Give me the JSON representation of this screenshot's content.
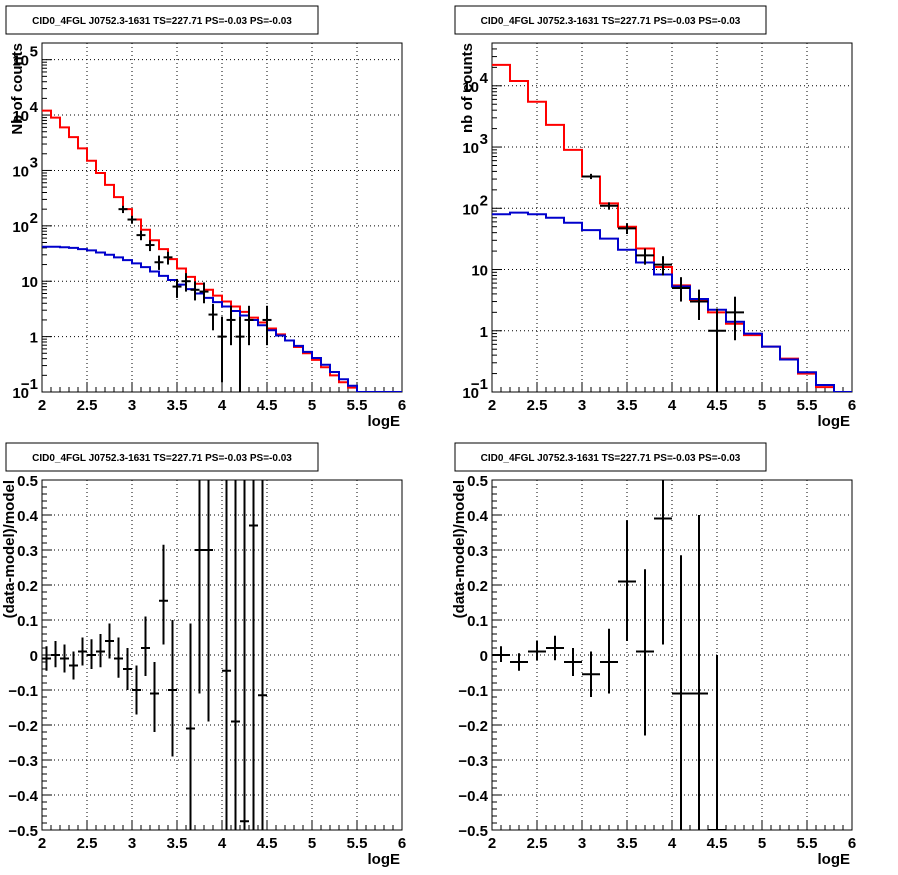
{
  "chart_data": [
    {
      "type": "line",
      "title": "CID0_4FGL J0752.3-1631 TS=227.71 PS=-0.03 PS=-0.03",
      "xlabel": "logE",
      "ylabel": "Nb of counts",
      "xlim": [
        2,
        6
      ],
      "ylim": [
        0.1,
        200000
      ],
      "log_y": true,
      "grid": true,
      "x_ticks": [
        "2",
        "2.5",
        "3",
        "3.5",
        "4",
        "4.5",
        "5",
        "5.5",
        "6"
      ],
      "y_ticks": [
        {
          "v": 0.1,
          "base": "10",
          "exp": "−1"
        },
        {
          "v": 1,
          "base": "1",
          "exp": ""
        },
        {
          "v": 10,
          "base": "10",
          "exp": ""
        },
        {
          "v": 100,
          "base": "10",
          "exp": "2"
        },
        {
          "v": 1000,
          "base": "10",
          "exp": "3"
        },
        {
          "v": 10000,
          "base": "10",
          "exp": "4"
        },
        {
          "v": 100000,
          "base": "10",
          "exp": "5"
        }
      ],
      "bin_width": 0.1,
      "series": [
        {
          "kind": "step",
          "color": "#ff0000",
          "edges": [
            2.0,
            2.1,
            2.2,
            2.3,
            2.4,
            2.5,
            2.6,
            2.7,
            2.8,
            2.9,
            3.0,
            3.1,
            3.2,
            3.3,
            3.4,
            3.5,
            3.6,
            3.7,
            3.8,
            3.9,
            4.0,
            4.1,
            4.2,
            4.3,
            4.4,
            4.5,
            4.6,
            4.7,
            4.8,
            4.9,
            5.0,
            5.1,
            5.2,
            5.3,
            5.4,
            5.5,
            5.6,
            5.7,
            5.8,
            5.9,
            6.0
          ],
          "values": [
            12000,
            9000,
            6000,
            4000,
            2500,
            1500,
            900,
            550,
            330,
            200,
            130,
            85,
            55,
            38,
            25,
            17,
            12,
            9,
            7,
            5.5,
            4.3,
            3.5,
            2.8,
            2.2,
            1.8,
            1.4,
            1.1,
            0.85,
            0.65,
            0.5,
            0.38,
            0.28,
            0.2,
            0.15,
            0.12,
            0.1,
            0.1,
            0.1,
            0.1,
            0.1
          ]
        },
        {
          "kind": "step",
          "color": "#0000cc",
          "edges": [
            2.0,
            2.1,
            2.2,
            2.3,
            2.4,
            2.5,
            2.6,
            2.7,
            2.8,
            2.9,
            3.0,
            3.1,
            3.2,
            3.3,
            3.4,
            3.5,
            3.6,
            3.7,
            3.8,
            3.9,
            4.0,
            4.1,
            4.2,
            4.3,
            4.4,
            4.5,
            4.6,
            4.7,
            4.8,
            4.9,
            5.0,
            5.1,
            5.2,
            5.3,
            5.4,
            5.5,
            5.6,
            5.7,
            5.8,
            5.9,
            6.0
          ],
          "values": [
            42,
            42,
            41,
            40,
            38,
            36,
            33,
            30,
            27,
            24,
            21,
            18,
            15,
            12.5,
            10.5,
            8.7,
            7.2,
            6.0,
            5.0,
            4.2,
            3.5,
            2.9,
            2.4,
            2.0,
            1.6,
            1.3,
            1.05,
            0.85,
            0.68,
            0.53,
            0.41,
            0.31,
            0.23,
            0.17,
            0.13,
            0.1,
            0.1,
            0.1,
            0.1,
            0.1
          ]
        },
        {
          "kind": "points",
          "color": "#000000",
          "points": [
            {
              "x": 2.9,
              "y": 200,
              "ylo": 170,
              "yhi": 230
            },
            {
              "x": 3.0,
              "y": 130,
              "ylo": 110,
              "yhi": 152
            },
            {
              "x": 3.1,
              "y": 68,
              "ylo": 55,
              "yhi": 82
            },
            {
              "x": 3.2,
              "y": 45,
              "ylo": 35,
              "yhi": 55
            },
            {
              "x": 3.3,
              "y": 22,
              "ylo": 16,
              "yhi": 29
            },
            {
              "x": 3.4,
              "y": 27,
              "ylo": 20,
              "yhi": 34
            },
            {
              "x": 3.5,
              "y": 8,
              "ylo": 5,
              "yhi": 11
            },
            {
              "x": 3.6,
              "y": 10,
              "ylo": 6.5,
              "yhi": 14
            },
            {
              "x": 3.7,
              "y": 7,
              "ylo": 4.5,
              "yhi": 10
            },
            {
              "x": 3.8,
              "y": 6.5,
              "ylo": 4,
              "yhi": 9.5
            },
            {
              "x": 3.9,
              "y": 2.5,
              "ylo": 1.3,
              "yhi": 3.9
            },
            {
              "x": 4.0,
              "y": 1,
              "ylo": 0.15,
              "yhi": 2.3
            },
            {
              "x": 4.1,
              "y": 2,
              "ylo": 0.7,
              "yhi": 3.6
            },
            {
              "x": 4.2,
              "y": 1,
              "ylo": 0.1,
              "yhi": 2.3
            },
            {
              "x": 4.3,
              "y": 2,
              "ylo": 0.7,
              "yhi": 3.6
            },
            {
              "x": 4.5,
              "y": 2,
              "ylo": 0.7,
              "yhi": 3.6
            }
          ]
        }
      ]
    },
    {
      "type": "line",
      "title": "CID0_4FGL J0752.3-1631 TS=227.71 PS=-0.03 PS=-0.03",
      "xlabel": "logE",
      "ylabel": "nb of counts",
      "xlim": [
        2,
        6
      ],
      "ylim": [
        0.1,
        50000
      ],
      "log_y": true,
      "grid": true,
      "x_ticks": [
        "2",
        "2.5",
        "3",
        "3.5",
        "4",
        "4.5",
        "5",
        "5.5",
        "6"
      ],
      "y_ticks": [
        {
          "v": 0.1,
          "base": "10",
          "exp": "−1"
        },
        {
          "v": 1,
          "base": "1",
          "exp": ""
        },
        {
          "v": 10,
          "base": "10",
          "exp": ""
        },
        {
          "v": 100,
          "base": "10",
          "exp": "2"
        },
        {
          "v": 1000,
          "base": "10",
          "exp": "3"
        },
        {
          "v": 10000,
          "base": "10",
          "exp": "4"
        }
      ],
      "bin_width": 0.2,
      "series": [
        {
          "kind": "step",
          "color": "#ff0000",
          "edges": [
            2.0,
            2.2,
            2.4,
            2.6,
            2.8,
            3.0,
            3.2,
            3.4,
            3.6,
            3.8,
            4.0,
            4.2,
            4.4,
            4.6,
            4.8,
            5.0,
            5.2,
            5.4,
            5.6,
            5.8,
            6.0
          ],
          "values": [
            22000,
            12000,
            5500,
            2300,
            900,
            330,
            120,
            50,
            22,
            11,
            5.5,
            3.2,
            2.0,
            1.3,
            0.85,
            0.55,
            0.35,
            0.2,
            0.12,
            0.1
          ]
        },
        {
          "kind": "step",
          "color": "#0000cc",
          "edges": [
            2.0,
            2.2,
            2.4,
            2.6,
            2.8,
            3.0,
            3.2,
            3.4,
            3.6,
            3.8,
            4.0,
            4.2,
            4.4,
            4.6,
            4.8,
            5.0,
            5.2,
            5.4,
            5.6,
            5.8,
            6.0
          ],
          "values": [
            80,
            85,
            80,
            70,
            58,
            44,
            32,
            21,
            13,
            8.3,
            5.3,
            3.3,
            2.2,
            1.4,
            0.9,
            0.55,
            0.34,
            0.21,
            0.13,
            0.1
          ]
        },
        {
          "kind": "points",
          "color": "#000000",
          "points": [
            {
              "x": 3.1,
              "y": 330,
              "ylo": 300,
              "yhi": 365
            },
            {
              "x": 3.3,
              "y": 110,
              "ylo": 95,
              "yhi": 125
            },
            {
              "x": 3.5,
              "y": 47,
              "ylo": 38,
              "yhi": 57
            },
            {
              "x": 3.7,
              "y": 17,
              "ylo": 12,
              "yhi": 22
            },
            {
              "x": 3.9,
              "y": 12,
              "ylo": 8,
              "yhi": 16.5
            },
            {
              "x": 4.1,
              "y": 5,
              "ylo": 3,
              "yhi": 7.5
            },
            {
              "x": 4.3,
              "y": 3,
              "ylo": 1.5,
              "yhi": 4.7
            },
            {
              "x": 4.5,
              "y": 1,
              "ylo": 0.1,
              "yhi": 2.3
            },
            {
              "x": 4.7,
              "y": 2,
              "ylo": 0.7,
              "yhi": 3.6
            }
          ]
        }
      ]
    },
    {
      "type": "scatter",
      "title": "CID0_4FGL J0752.3-1631 TS=227.71 PS=-0.03 PS=-0.03",
      "xlabel": "logE",
      "ylabel": "(data-model)/model",
      "xlim": [
        2,
        6
      ],
      "ylim": [
        -0.5,
        0.5
      ],
      "grid": true,
      "x_ticks": [
        "2",
        "2.5",
        "3",
        "3.5",
        "4",
        "4.5",
        "5",
        "5.5",
        "6"
      ],
      "y_ticks": [
        "−0.5",
        "−0.4",
        "−0.3",
        "−0.2",
        "−0.1",
        "0",
        "0.1",
        "0.2",
        "0.3",
        "0.4",
        "0.5"
      ],
      "bin_width": 0.1,
      "series": [
        {
          "kind": "points",
          "color": "#000000",
          "points": [
            {
              "x": 2.05,
              "y": -0.01,
              "ylo": -0.045,
              "yhi": 0.025
            },
            {
              "x": 2.15,
              "y": 0.0,
              "ylo": -0.035,
              "yhi": 0.04
            },
            {
              "x": 2.25,
              "y": -0.01,
              "ylo": -0.05,
              "yhi": 0.03
            },
            {
              "x": 2.35,
              "y": -0.03,
              "ylo": -0.07,
              "yhi": 0.01
            },
            {
              "x": 2.45,
              "y": 0.01,
              "ylo": -0.03,
              "yhi": 0.05
            },
            {
              "x": 2.55,
              "y": 0.0,
              "ylo": -0.04,
              "yhi": 0.045
            },
            {
              "x": 2.65,
              "y": 0.01,
              "ylo": -0.035,
              "yhi": 0.06
            },
            {
              "x": 2.75,
              "y": 0.04,
              "ylo": -0.01,
              "yhi": 0.09
            },
            {
              "x": 2.85,
              "y": -0.01,
              "ylo": -0.065,
              "yhi": 0.05
            },
            {
              "x": 2.95,
              "y": -0.04,
              "ylo": -0.1,
              "yhi": 0.02
            },
            {
              "x": 3.05,
              "y": -0.1,
              "ylo": -0.17,
              "yhi": -0.03
            },
            {
              "x": 3.15,
              "y": 0.02,
              "ylo": -0.06,
              "yhi": 0.11
            },
            {
              "x": 3.25,
              "y": -0.11,
              "ylo": -0.22,
              "yhi": -0.02
            },
            {
              "x": 3.35,
              "y": 0.155,
              "ylo": 0.03,
              "yhi": 0.315
            },
            {
              "x": 3.45,
              "y": -0.1,
              "ylo": -0.29,
              "yhi": 0.1
            },
            {
              "x": 3.65,
              "y": -0.21,
              "ylo": -0.5,
              "yhi": 0.09
            },
            {
              "x": 3.75,
              "y": 0.3,
              "ylo": -0.11,
              "yhi": 0.5
            },
            {
              "x": 3.85,
              "y": 0.3,
              "ylo": -0.19,
              "yhi": 0.5
            },
            {
              "x": 4.05,
              "y": -0.045,
              "ylo": -0.5,
              "yhi": 0.5
            },
            {
              "x": 4.15,
              "y": -0.19,
              "ylo": -0.5,
              "yhi": 0.5
            },
            {
              "x": 4.25,
              "y": -0.475,
              "ylo": -0.5,
              "yhi": 0.5
            },
            {
              "x": 4.35,
              "y": 0.37,
              "ylo": -0.5,
              "yhi": 0.5
            },
            {
              "x": 4.45,
              "y": -0.115,
              "ylo": -0.5,
              "yhi": 0.5
            }
          ]
        }
      ]
    },
    {
      "type": "scatter",
      "title": "CID0_4FGL J0752.3-1631 TS=227.71 PS=-0.03 PS=-0.03",
      "xlabel": "logE",
      "ylabel": "(data-model)/model",
      "xlim": [
        2,
        6
      ],
      "ylim": [
        -0.5,
        0.5
      ],
      "grid": true,
      "x_ticks": [
        "2",
        "2.5",
        "3",
        "3.5",
        "4",
        "4.5",
        "5",
        "5.5",
        "6"
      ],
      "y_ticks": [
        "−0.5",
        "−0.4",
        "−0.3",
        "−0.2",
        "−0.1",
        "0",
        "0.1",
        "0.2",
        "0.3",
        "0.4",
        "0.5"
      ],
      "bin_width": 0.2,
      "series": [
        {
          "kind": "points",
          "color": "#000000",
          "points": [
            {
              "x": 2.1,
              "y": 0.0,
              "ylo": -0.02,
              "yhi": 0.025
            },
            {
              "x": 2.3,
              "y": -0.02,
              "ylo": -0.045,
              "yhi": 0.005
            },
            {
              "x": 2.5,
              "y": 0.01,
              "ylo": -0.015,
              "yhi": 0.04
            },
            {
              "x": 2.7,
              "y": 0.02,
              "ylo": -0.015,
              "yhi": 0.055
            },
            {
              "x": 2.9,
              "y": -0.02,
              "ylo": -0.06,
              "yhi": 0.02
            },
            {
              "x": 3.1,
              "y": -0.055,
              "ylo": -0.12,
              "yhi": 0.01
            },
            {
              "x": 3.3,
              "y": -0.02,
              "ylo": -0.11,
              "yhi": 0.075
            },
            {
              "x": 3.5,
              "y": 0.21,
              "ylo": 0.04,
              "yhi": 0.385
            },
            {
              "x": 3.7,
              "y": 0.01,
              "ylo": -0.23,
              "yhi": 0.245
            },
            {
              "x": 3.9,
              "y": 0.39,
              "ylo": 0.03,
              "yhi": 0.5
            },
            {
              "x": 4.1,
              "y": -0.11,
              "ylo": -0.5,
              "yhi": 0.285
            },
            {
              "x": 4.3,
              "y": -0.11,
              "ylo": -0.5,
              "yhi": 0.4
            },
            {
              "x": 4.5,
              "y": -0.5,
              "ylo": -0.5,
              "yhi": 0.0
            }
          ]
        }
      ]
    }
  ]
}
